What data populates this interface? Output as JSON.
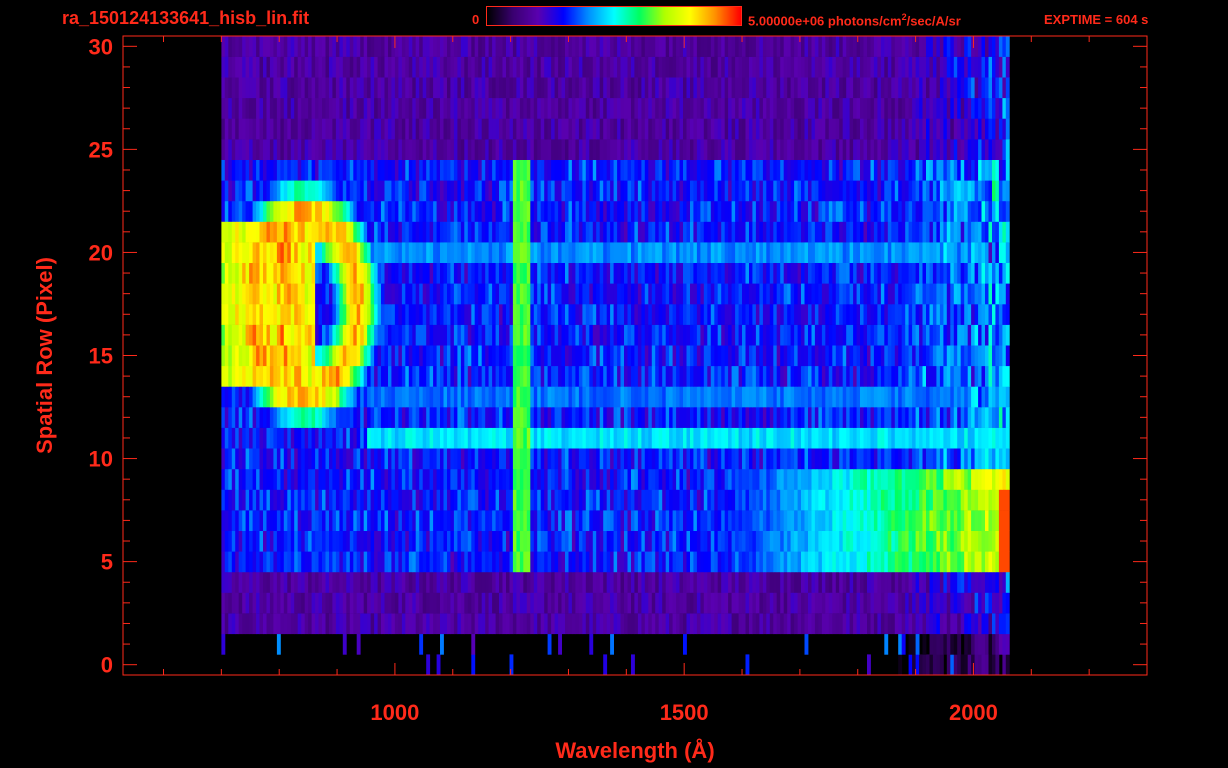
{
  "header": {
    "title": "ra_150124133641_hisb_lin.fit",
    "colorbar_min_label": "0",
    "colorbar_max_label_main": "5.00000e+06 photons/cm",
    "colorbar_max_label_sup": "2",
    "colorbar_max_label_tail": "/sec/A/sr",
    "exptime_label": "EXPTIME = 604 s"
  },
  "colors": {
    "axis": "#ff2a1a",
    "background": "#000000",
    "colormap": [
      "#000000",
      "#3a0070",
      "#5a00b0",
      "#0000ff",
      "#0090ff",
      "#00ffff",
      "#00ff60",
      "#b0ff00",
      "#ffff00",
      "#ff9000",
      "#ff0000"
    ]
  },
  "chart_data": {
    "type": "heatmap",
    "title": "ra_150124133641_hisb_lin.fit",
    "xlabel": "Wavelength (Å)",
    "ylabel": "Spatial Row (Pixel)",
    "xlim": [
      530,
      2300
    ],
    "ylim": [
      -0.5,
      30.5
    ],
    "x_ticks": [
      1000,
      1500,
      2000
    ],
    "y_ticks": [
      0,
      5,
      10,
      15,
      20,
      25,
      30
    ],
    "colorbar_range": [
      0,
      5000000
    ],
    "colorbar_unit": "photons/cm2/sec/A/sr",
    "spectrum_range": [
      700,
      2060
    ],
    "rows": 31,
    "features": [
      {
        "name": "Lyman-alpha line",
        "wavelength": 1216,
        "rows": [
          5,
          24
        ],
        "intensity": 0.6
      },
      {
        "name": "emission blob",
        "wavelength": 800,
        "rows": [
          11,
          24
        ],
        "intensity": 0.95
      },
      {
        "name": "continuum rows 5-9",
        "wavelength_start": 1550,
        "wavelength_end": 2060,
        "rows": [
          5,
          9
        ],
        "intensity": 0.85
      },
      {
        "name": "band row 11",
        "wavelength_start": 950,
        "wavelength_end": 2060,
        "rows": [
          11,
          11
        ],
        "intensity": 0.5
      },
      {
        "name": "band row 20",
        "wavelength_start": 950,
        "wavelength_end": 2000,
        "rows": [
          20,
          20
        ],
        "intensity": 0.42
      },
      {
        "name": "band row 13",
        "wavelength_start": 950,
        "wavelength_end": 2000,
        "rows": [
          13,
          13
        ],
        "intensity": 0.4
      }
    ]
  }
}
